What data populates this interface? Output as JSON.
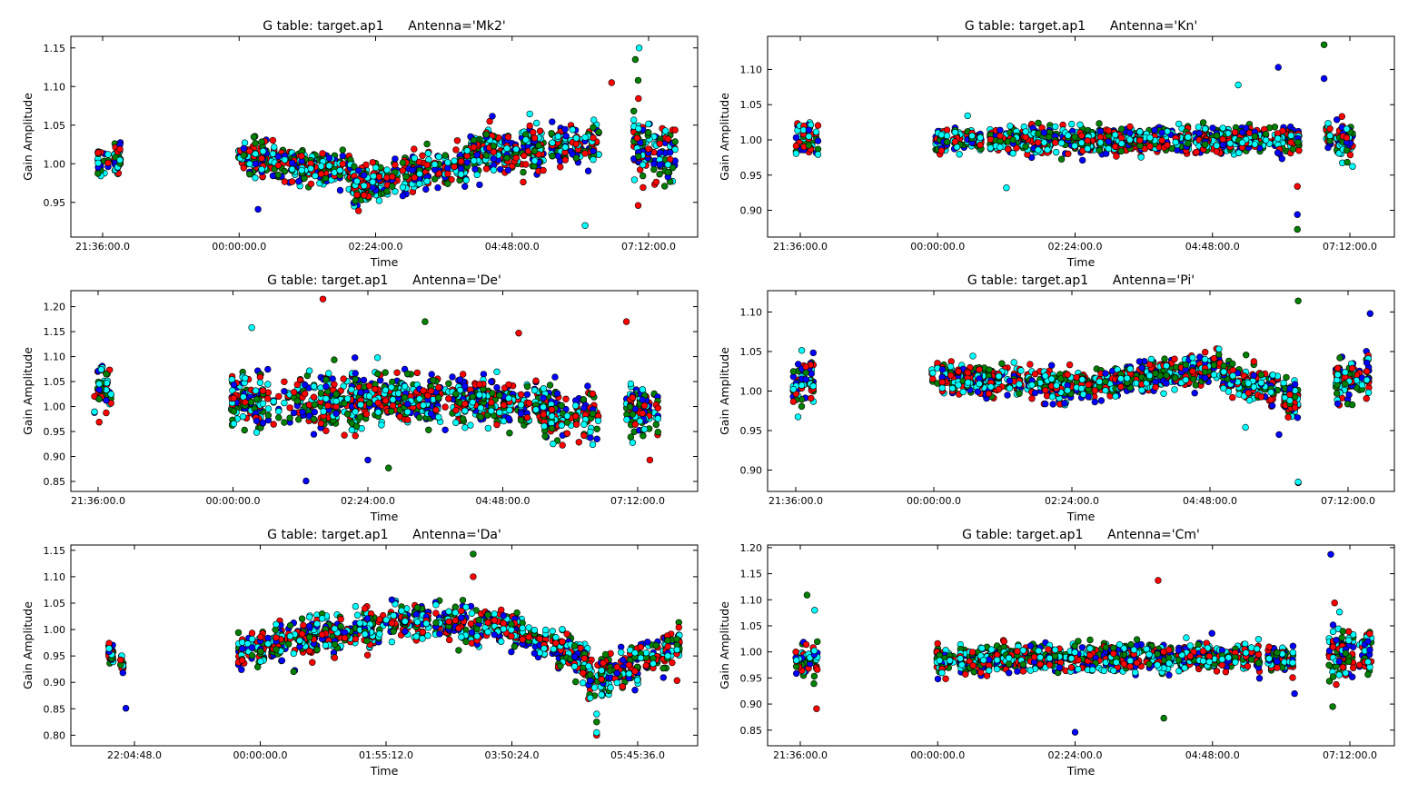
{
  "figure": {
    "series_colors": [
      "#0000ff",
      "#008000",
      "#ff0000",
      "#00ffff"
    ]
  },
  "chart_data": [
    {
      "type": "scatter",
      "title": "G table: target.ap1      Antenna='Mk2'",
      "xlabel": "Time",
      "ylabel": "Gain Amplitude",
      "xtick_labels": [
        "21:36:00.0",
        "00:00:00.0",
        "02:24:00.0",
        "04:48:00.0",
        "07:12:00.0"
      ],
      "ytick_labels": [
        "0.95",
        "1.00",
        "1.05",
        "1.10",
        "1.15"
      ],
      "ylim": [
        0.905,
        1.165
      ],
      "grid": false,
      "scans": [
        {
          "start": "21:31",
          "end": "21:55",
          "mean": 1.005,
          "trend": 1.01,
          "spread": 0.022
        },
        {
          "start": "23:58",
          "end": "02:00",
          "mean": 1.01,
          "trend": 0.99,
          "spread": 0.018
        },
        {
          "start": "02:00",
          "end": "04:00",
          "mean": 0.97,
          "trend": 1.0,
          "spread": 0.02
        },
        {
          "start": "04:00",
          "end": "06:20",
          "mean": 1.015,
          "trend": 1.025,
          "spread": 0.024
        },
        {
          "start": "06:55",
          "end": "07:40",
          "mean": 1.02,
          "trend": 1.015,
          "spread": 0.035
        }
      ],
      "outliers": [
        {
          "x": "07:02",
          "y": 1.15,
          "series": 3
        },
        {
          "x": "06:58",
          "y": 1.135,
          "series": 1
        },
        {
          "x": "07:01",
          "y": 1.108,
          "series": 1
        },
        {
          "x": "06:33",
          "y": 1.105,
          "series": 2
        },
        {
          "x": "06:05",
          "y": 0.92,
          "series": 3
        },
        {
          "x": "07:01",
          "y": 0.946,
          "series": 2
        },
        {
          "x": "02:06",
          "y": 0.939,
          "series": 2
        },
        {
          "x": "00:20",
          "y": 0.941,
          "series": 0
        }
      ]
    },
    {
      "type": "scatter",
      "title": "G table: target.ap1      Antenna='Kn'",
      "xlabel": "Time",
      "ylabel": "Gain Amplitude",
      "xtick_labels": [
        "21:36:00.0",
        "00:00:00.0",
        "02:24:00.0",
        "04:48:00.0",
        "07:12:00.0"
      ],
      "ytick_labels": [
        "0.90",
        "0.95",
        "1.00",
        "1.05",
        "1.10"
      ],
      "ylim": [
        0.862,
        1.147
      ],
      "grid": false,
      "scans": [
        {
          "start": "21:31",
          "end": "21:55",
          "mean": 1.005,
          "trend": 1.0,
          "spread": 0.02
        },
        {
          "start": "23:58",
          "end": "03:30",
          "mean": 1.0,
          "trend": 1.0,
          "spread": 0.015
        },
        {
          "start": "03:30",
          "end": "06:20",
          "mean": 1.0,
          "trend": 1.0,
          "spread": 0.016
        },
        {
          "start": "06:45",
          "end": "07:15",
          "mean": 1.0,
          "trend": 1.0,
          "spread": 0.02
        }
      ],
      "outliers": [
        {
          "x": "06:45",
          "y": 1.135,
          "series": 1
        },
        {
          "x": "05:57",
          "y": 1.103,
          "series": 0
        },
        {
          "x": "06:45",
          "y": 1.087,
          "series": 0
        },
        {
          "x": "05:15",
          "y": 1.078,
          "series": 3
        },
        {
          "x": "06:17",
          "y": 0.873,
          "series": 1
        },
        {
          "x": "06:17",
          "y": 0.894,
          "series": 0
        },
        {
          "x": "06:17",
          "y": 0.934,
          "series": 2
        },
        {
          "x": "01:12",
          "y": 0.932,
          "series": 3
        }
      ]
    },
    {
      "type": "scatter",
      "title": "G table: target.ap1      Antenna='De'",
      "xlabel": "Time",
      "ylabel": "Gain Amplitude",
      "xtick_labels": [
        "21:36:00.0",
        "00:00:00.0",
        "02:24:00.0",
        "04:48:00.0",
        "07:12:00.0"
      ],
      "ytick_labels": [
        "0.85",
        "0.90",
        "0.95",
        "1.00",
        "1.05",
        "1.10",
        "1.15",
        "1.20"
      ],
      "ylim": [
        0.83,
        1.232
      ],
      "grid": false,
      "scans": [
        {
          "start": "21:31",
          "end": "21:50",
          "mean": 1.03,
          "trend": 1.04,
          "spread": 0.04
        },
        {
          "start": "23:58",
          "end": "02:40",
          "mean": 1.01,
          "trend": 1.01,
          "spread": 0.045
        },
        {
          "start": "02:40",
          "end": "05:30",
          "mean": 1.02,
          "trend": 1.0,
          "spread": 0.04
        },
        {
          "start": "05:30",
          "end": "06:30",
          "mean": 0.99,
          "trend": 0.98,
          "spread": 0.04
        },
        {
          "start": "07:00",
          "end": "07:35",
          "mean": 0.99,
          "trend": 0.99,
          "spread": 0.04
        }
      ],
      "outliers": [
        {
          "x": "01:36",
          "y": 1.215,
          "series": 2
        },
        {
          "x": "07:00",
          "y": 1.17,
          "series": 2
        },
        {
          "x": "03:25",
          "y": 1.17,
          "series": 1
        },
        {
          "x": "05:05",
          "y": 1.147,
          "series": 2
        },
        {
          "x": "00:20",
          "y": 1.158,
          "series": 3
        },
        {
          "x": "01:18",
          "y": 0.851,
          "series": 0
        },
        {
          "x": "02:46",
          "y": 0.877,
          "series": 1
        },
        {
          "x": "02:24",
          "y": 0.893,
          "series": 0
        },
        {
          "x": "07:25",
          "y": 0.893,
          "series": 2
        }
      ]
    },
    {
      "type": "scatter",
      "title": "G table: target.ap1      Antenna='Pi'",
      "xlabel": "Time",
      "ylabel": "Gain Amplitude",
      "xtick_labels": [
        "21:36:00.0",
        "00:00:00.0",
        "02:24:00.0",
        "04:48:00.0",
        "07:12:00.0"
      ],
      "ytick_labels": [
        "0.90",
        "0.95",
        "1.00",
        "1.05",
        "1.10"
      ],
      "ylim": [
        0.873,
        1.127
      ],
      "grid": false,
      "scans": [
        {
          "start": "21:31",
          "end": "21:55",
          "mean": 1.0,
          "trend": 1.02,
          "spread": 0.025
        },
        {
          "start": "23:58",
          "end": "02:24",
          "mean": 1.02,
          "trend": 1.005,
          "spread": 0.016
        },
        {
          "start": "02:24",
          "end": "05:00",
          "mean": 1.005,
          "trend": 1.03,
          "spread": 0.015
        },
        {
          "start": "05:00",
          "end": "06:20",
          "mean": 1.02,
          "trend": 0.99,
          "spread": 0.018
        },
        {
          "start": "06:55",
          "end": "07:35",
          "mean": 1.01,
          "trend": 1.02,
          "spread": 0.025
        }
      ],
      "outliers": [
        {
          "x": "06:20",
          "y": 1.114,
          "series": 1
        },
        {
          "x": "07:35",
          "y": 1.098,
          "series": 0
        },
        {
          "x": "06:20",
          "y": 0.884,
          "series": 2
        },
        {
          "x": "06:20",
          "y": 0.885,
          "series": 3
        },
        {
          "x": "06:00",
          "y": 0.945,
          "series": 0
        },
        {
          "x": "05:25",
          "y": 0.954,
          "series": 3
        }
      ]
    },
    {
      "type": "scatter",
      "title": "G table: target.ap1      Antenna='Da'",
      "xlabel": "Time",
      "ylabel": "Gain Amplitude",
      "xtick_labels": [
        "22:04:48.0",
        "00:00:00.0",
        "01:55:12.0",
        "03:50:24.0",
        "05:45:36.0"
      ],
      "ytick_labels": [
        "0.80",
        "0.85",
        "0.90",
        "0.95",
        "1.00",
        "1.05",
        "1.10",
        "1.15"
      ],
      "ylim": [
        0.78,
        1.16
      ],
      "grid": false,
      "scans": [
        {
          "start": "21:40",
          "end": "21:55",
          "mean": 0.96,
          "trend": 0.93,
          "spread": 0.018
        },
        {
          "start": "23:40",
          "end": "02:00",
          "mean": 0.96,
          "trend": 1.01,
          "spread": 0.03
        },
        {
          "start": "02:00",
          "end": "04:00",
          "mean": 1.02,
          "trend": 1.0,
          "spread": 0.028
        },
        {
          "start": "04:00",
          "end": "05:00",
          "mean": 0.99,
          "trend": 0.94,
          "spread": 0.03
        },
        {
          "start": "05:00",
          "end": "06:25",
          "mean": 0.9,
          "trend": 0.97,
          "spread": 0.03
        }
      ],
      "outliers": [
        {
          "x": "03:15",
          "y": 1.143,
          "series": 1
        },
        {
          "x": "03:15",
          "y": 1.1,
          "series": 2
        },
        {
          "x": "21:57",
          "y": 0.851,
          "series": 0
        },
        {
          "x": "05:08",
          "y": 0.8,
          "series": 2
        },
        {
          "x": "05:08",
          "y": 0.805,
          "series": 3
        },
        {
          "x": "05:08",
          "y": 0.825,
          "series": 1
        },
        {
          "x": "05:08",
          "y": 0.84,
          "series": 3
        }
      ]
    },
    {
      "type": "scatter",
      "title": "G table: target.ap1      Antenna='Cm'",
      "xlabel": "Time",
      "ylabel": "Gain Amplitude",
      "xtick_labels": [
        "21:36:00.0",
        "00:00:00.0",
        "02:24:00.0",
        "04:48:00.0",
        "07:12:00.0"
      ],
      "ytick_labels": [
        "0.85",
        "0.90",
        "0.95",
        "1.00",
        "1.05",
        "1.10",
        "1.15",
        "1.20"
      ],
      "ylim": [
        0.82,
        1.205
      ],
      "grid": false,
      "scans": [
        {
          "start": "21:31",
          "end": "21:55",
          "mean": 0.985,
          "trend": 0.985,
          "spread": 0.025
        },
        {
          "start": "23:58",
          "end": "03:00",
          "mean": 0.985,
          "trend": 0.99,
          "spread": 0.022
        },
        {
          "start": "03:00",
          "end": "06:15",
          "mean": 0.99,
          "trend": 0.99,
          "spread": 0.022
        },
        {
          "start": "06:50",
          "end": "07:35",
          "mean": 1.0,
          "trend": 1.0,
          "spread": 0.04
        }
      ],
      "outliers": [
        {
          "x": "06:52",
          "y": 1.187,
          "series": 0
        },
        {
          "x": "03:51",
          "y": 1.137,
          "series": 2
        },
        {
          "x": "21:43",
          "y": 1.109,
          "series": 1
        },
        {
          "x": "21:51",
          "y": 1.08,
          "series": 3
        },
        {
          "x": "06:56",
          "y": 1.094,
          "series": 2
        },
        {
          "x": "02:24",
          "y": 0.846,
          "series": 0
        },
        {
          "x": "21:53",
          "y": 0.891,
          "series": 2
        },
        {
          "x": "03:57",
          "y": 0.873,
          "series": 1
        },
        {
          "x": "06:54",
          "y": 0.895,
          "series": 1
        },
        {
          "x": "06:14",
          "y": 0.92,
          "series": 0
        }
      ]
    }
  ]
}
